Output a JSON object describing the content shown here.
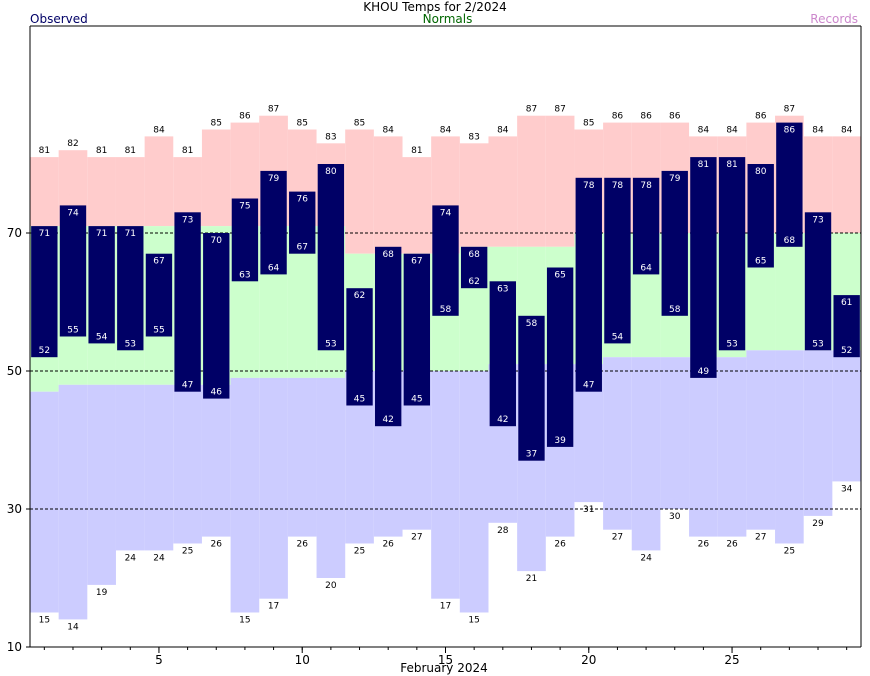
{
  "chart_data": {
    "type": "bar",
    "title": "KHOU Temps for 2/2024",
    "xlabel": "February 2024",
    "ylabel": "",
    "ylim": [
      10,
      100
    ],
    "xlim": [
      0.5,
      29.5
    ],
    "yticks": [
      10,
      30,
      50,
      70
    ],
    "xticks": [
      5,
      10,
      15,
      20,
      25
    ],
    "gridlines_y": [
      30,
      50,
      70
    ],
    "legend": [
      {
        "name": "Observed",
        "color": "#000066",
        "position": "top-left"
      },
      {
        "name": "Normals",
        "color": "#006600",
        "position": "top-center"
      },
      {
        "name": "Records",
        "color": "#cc88cc",
        "position": "top-right"
      }
    ],
    "days": [
      1,
      2,
      3,
      4,
      5,
      6,
      7,
      8,
      9,
      10,
      11,
      12,
      13,
      14,
      15,
      16,
      17,
      18,
      19,
      20,
      21,
      22,
      23,
      24,
      25,
      26,
      27,
      28,
      29
    ],
    "series": [
      {
        "name": "Record High",
        "color": "#ffcccc",
        "values": [
          81,
          82,
          81,
          81,
          84,
          81,
          85,
          86,
          87,
          85,
          83,
          85,
          84,
          81,
          84,
          83,
          84,
          87,
          87,
          85,
          86,
          86,
          86,
          84,
          84,
          86,
          87,
          84,
          84
        ]
      },
      {
        "name": "Normal High",
        "color": "#ccffcc",
        "values": [
          71,
          71,
          71,
          71,
          71,
          71,
          71,
          71,
          71,
          71,
          71,
          67,
          67,
          67,
          67,
          68,
          68,
          68,
          68,
          70,
          70,
          70,
          70,
          70,
          70,
          70,
          70,
          70,
          70
        ]
      },
      {
        "name": "Normal Low",
        "color": "#ccccff",
        "values": [
          47,
          48,
          48,
          48,
          48,
          48,
          48,
          49,
          49,
          49,
          49,
          50,
          50,
          50,
          50,
          50,
          51,
          51,
          51,
          51,
          52,
          52,
          52,
          52,
          52,
          53,
          53,
          53,
          53
        ]
      },
      {
        "name": "Record Low",
        "color": "#ffffff",
        "values": [
          15,
          14,
          19,
          24,
          24,
          25,
          26,
          15,
          17,
          26,
          20,
          25,
          26,
          27,
          17,
          15,
          28,
          21,
          26,
          31,
          27,
          24,
          30,
          26,
          26,
          27,
          25,
          29,
          34
        ]
      },
      {
        "name": "Observed High",
        "color": "#000066",
        "values": [
          71,
          74,
          71,
          71,
          67,
          73,
          70,
          75,
          79,
          76,
          80,
          62,
          68,
          67,
          74,
          68,
          63,
          58,
          65,
          78,
          78,
          78,
          79,
          81,
          81,
          80,
          86,
          73,
          61
        ]
      },
      {
        "name": "Observed Low",
        "color": "#000066",
        "values": [
          52,
          55,
          54,
          53,
          55,
          47,
          46,
          63,
          64,
          67,
          53,
          45,
          42,
          45,
          58,
          62,
          42,
          37,
          39,
          47,
          54,
          64,
          58,
          49,
          53,
          65,
          68,
          53,
          52
        ]
      }
    ]
  }
}
